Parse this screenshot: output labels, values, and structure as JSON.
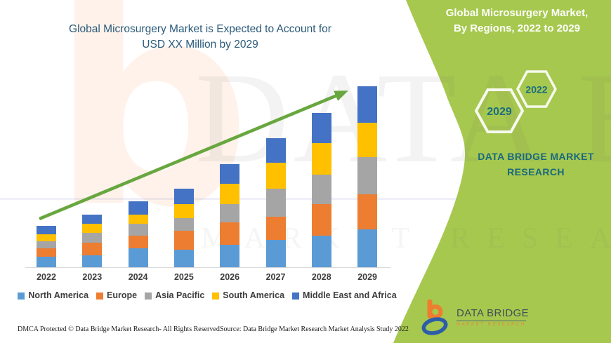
{
  "theme": {
    "panel_green": "#a6c84f",
    "arrow_green": "#68a73f",
    "accent_teal": "#19697e",
    "title_blue": "#2a5a7a"
  },
  "left": {
    "title_lines": [
      "Global Microsurgery Market is Expected to Account for",
      "USD XX Million by 2029"
    ],
    "footer_left": "DMCA Protected © Data Bridge Market Research- All Rights Reserved.",
    "footer_source": "Source: Data Bridge Market Research Market Analysis Study 2022"
  },
  "right_panel": {
    "title_lines": [
      "Global Microsurgery Market,",
      "By Regions, 2022 to 2029"
    ],
    "hexagons": [
      {
        "label": "2029"
      },
      {
        "label": "2022"
      }
    ],
    "brand_lines": [
      "DATA BRIDGE MARKET",
      "RESEARCH"
    ]
  },
  "logo": {
    "name_top": "DATA BRIDGE",
    "name_bottom": "MARKET RESEARCH"
  },
  "watermark": {
    "letter_b": "b",
    "big_text": "DATA BRIDGE",
    "spaced_text": "MARKET RESEARCH"
  },
  "chart_data": {
    "type": "bar",
    "stacked": true,
    "title": "Global Microsurgery Market is Expected to Account for USD XX Million by 2029",
    "xlabel": "",
    "ylabel": "",
    "value_axis_visible": false,
    "units": "relative units (actual values shown as USD XX Million, not labeled)",
    "legend_position": "bottom",
    "grid": false,
    "trend_arrow": true,
    "categories": [
      "2022",
      "2023",
      "2024",
      "2025",
      "2026",
      "2027",
      "2028",
      "2029"
    ],
    "series": [
      {
        "name": "North America",
        "color": "#5B9BD5",
        "values": [
          15,
          17,
          27,
          25,
          32,
          39,
          45,
          54
        ]
      },
      {
        "name": "Europe",
        "color": "#ED7D31",
        "values": [
          12,
          18,
          18,
          27,
          32,
          33,
          45,
          50
        ]
      },
      {
        "name": "Asia Pacific",
        "color": "#A5A5A5",
        "values": [
          10,
          14,
          17,
          18,
          26,
          40,
          42,
          53
        ]
      },
      {
        "name": "South America",
        "color": "#FFC000",
        "values": [
          10,
          13,
          13,
          20,
          29,
          37,
          45,
          49
        ]
      },
      {
        "name": "Middle East and Africa",
        "color": "#4472C4",
        "values": [
          12,
          13,
          19,
          22,
          28,
          35,
          43,
          52
        ]
      }
    ]
  }
}
